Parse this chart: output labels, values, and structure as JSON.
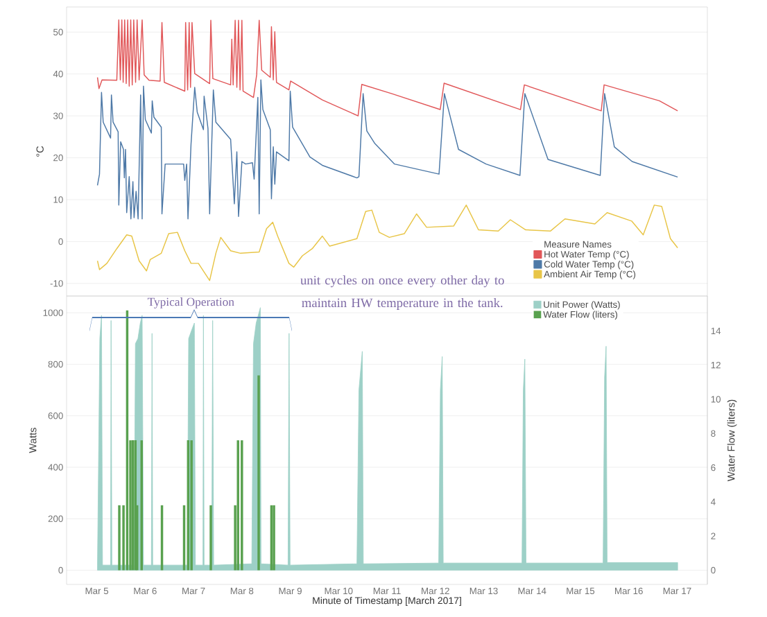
{
  "chart_data": [
    {
      "type": "line",
      "ylabel": "°C",
      "xlim": [
        "2017-03-04T09:00",
        "2017-03-17T15:00"
      ],
      "ylim": [
        -13,
        56
      ],
      "yticks": [
        -10,
        0,
        10,
        20,
        30,
        40,
        50
      ],
      "grid": "y",
      "tick_labels": "y",
      "legend": "bottom right",
      "legend_title": "Measure Names",
      "series": [
        {
          "name": "Hot Water Temp (°C)",
          "color": "#e15759",
          "x": [
            "2017-03-05T00:20",
            "2017-03-05T01:05",
            "2017-03-05T02:35",
            "2017-03-05T09:55",
            "2017-03-05T10:55",
            "2017-03-05T11:40",
            "2017-03-05T12:25",
            "2017-03-05T13:05",
            "2017-03-05T13:50",
            "2017-03-05T14:35",
            "2017-03-05T15:20",
            "2017-03-05T16:05",
            "2017-03-05T16:50",
            "2017-03-05T17:35",
            "2017-03-05T18:20",
            "2017-03-05T19:15",
            "2017-03-05T20:00",
            "2017-03-05T21:00",
            "2017-03-05T22:30",
            "2017-03-05T23:30",
            "2017-03-06T01:55",
            "2017-03-06T07:25",
            "2017-03-06T08:20",
            "2017-03-06T09:30",
            "2017-03-06T19:40",
            "2017-03-06T20:05",
            "2017-03-06T21:05",
            "2017-03-06T21:50",
            "2017-03-06T22:30",
            "2017-03-06T23:15",
            "2017-03-07T00:35",
            "2017-03-07T08:00",
            "2017-03-07T08:35",
            "2017-03-07T09:35",
            "2017-03-07T18:25",
            "2017-03-07T19:00",
            "2017-03-07T19:40",
            "2017-03-07T20:40",
            "2017-03-07T21:30",
            "2017-03-07T22:20",
            "2017-03-07T23:05",
            "2017-03-08T00:00",
            "2017-03-08T00:35",
            "2017-03-08T05:45",
            "2017-03-08T07:20",
            "2017-03-08T08:35",
            "2017-03-08T09:50",
            "2017-03-08T14:05",
            "2017-03-08T14:40",
            "2017-03-08T15:35",
            "2017-03-08T16:20",
            "2017-03-08T17:10",
            "2017-03-08T23:20",
            "2017-03-09T00:10",
            "2017-03-09T15:55",
            "2017-03-10T09:40",
            "2017-03-10T11:30",
            "2017-03-11T02:25",
            "2017-03-12T02:25",
            "2017-03-12T04:20",
            "2017-03-13T18:15",
            "2017-03-13T20:10",
            "2017-03-15T10:20",
            "2017-03-15T11:45",
            "2017-03-16T15:10",
            "2017-03-17T00:15"
          ],
          "values": [
            39.2,
            36.5,
            38.6,
            38.5,
            52.9,
            38.6,
            52.9,
            38,
            52.9,
            37.7,
            52.9,
            37.1,
            52.9,
            37.4,
            52.9,
            38,
            52.9,
            38.6,
            52.9,
            39.8,
            38.5,
            38.3,
            52.3,
            38,
            35.9,
            52.3,
            36.2,
            52.3,
            36.8,
            52.3,
            40.1,
            37.7,
            52.8,
            38.9,
            37.4,
            48.3,
            37.4,
            52.8,
            36.8,
            52.8,
            36.2,
            52.8,
            35.9,
            34.4,
            39.8,
            52.8,
            40.9,
            39.2,
            51.3,
            38.6,
            50.1,
            38,
            36.2,
            38.3,
            33.8,
            30,
            37.5,
            35.3,
            31.5,
            37.8,
            31.5,
            37.4,
            31.2,
            37.4,
            33.6,
            31.2
          ]
        },
        {
          "name": "Cold Water Temp (°C)",
          "color": "#4e79a7",
          "x": [
            "2017-03-05T00:20",
            "2017-03-05T01:20",
            "2017-03-05T02:20",
            "2017-03-05T03:10",
            "2017-03-05T06:50",
            "2017-03-05T07:15",
            "2017-03-05T08:05",
            "2017-03-05T10:35",
            "2017-03-05T10:55",
            "2017-03-05T11:50",
            "2017-03-05T13:15",
            "2017-03-05T13:40",
            "2017-03-05T14:15",
            "2017-03-05T14:50",
            "2017-03-05T16:05",
            "2017-03-05T16:55",
            "2017-03-05T17:55",
            "2017-03-05T18:30",
            "2017-03-05T19:30",
            "2017-03-05T20:30",
            "2017-03-05T21:45",
            "2017-03-05T22:30",
            "2017-03-05T23:10",
            "2017-03-06T00:05",
            "2017-03-06T03:05",
            "2017-03-06T03:30",
            "2017-03-06T04:20",
            "2017-03-06T08:00",
            "2017-03-06T08:20",
            "2017-03-06T09:55",
            "2017-03-06T19:05",
            "2017-03-06T19:40",
            "2017-03-06T20:35",
            "2017-03-06T21:15",
            "2017-03-06T22:45",
            "2017-03-07T00:35",
            "2017-03-07T01:50",
            "2017-03-07T04:55",
            "2017-03-07T05:15",
            "2017-03-07T07:10",
            "2017-03-07T08:00",
            "2017-03-07T09:50",
            "2017-03-07T11:05",
            "2017-03-07T18:25",
            "2017-03-07T20:15",
            "2017-03-07T21:30",
            "2017-03-07T22:20",
            "2017-03-08T00:00",
            "2017-03-08T01:50",
            "2017-03-08T05:15",
            "2017-03-08T06:05",
            "2017-03-08T07:55",
            "2017-03-08T08:35",
            "2017-03-08T09:25",
            "2017-03-08T10:25",
            "2017-03-08T14:05",
            "2017-03-08T14:40",
            "2017-03-08T15:35",
            "2017-03-08T16:20",
            "2017-03-08T17:10",
            "2017-03-08T23:20",
            "2017-03-09T00:00",
            "2017-03-09T01:10",
            "2017-03-09T09:45",
            "2017-03-09T15:55",
            "2017-03-10T09:05",
            "2017-03-10T10:05",
            "2017-03-10T12:10",
            "2017-03-10T14:00",
            "2017-03-10T17:50",
            "2017-03-11T03:45",
            "2017-03-12T01:50",
            "2017-03-12T04:30",
            "2017-03-12T11:30",
            "2017-03-13T01:10",
            "2017-03-13T18:00",
            "2017-03-13T20:25",
            "2017-03-14T07:55",
            "2017-03-15T09:50",
            "2017-03-15T12:00",
            "2017-03-15T16:50",
            "2017-03-16T01:40",
            "2017-03-17T00:15"
          ],
          "values": [
            13.4,
            16.1,
            35.6,
            28.5,
            24.7,
            35,
            28.5,
            26.2,
            8.7,
            23.8,
            22,
            15.2,
            22,
            6.9,
            15.5,
            5.4,
            14.3,
            5.7,
            12,
            5.4,
            35,
            5.4,
            37.1,
            29.1,
            25.9,
            33.6,
            29.7,
            27.3,
            6.6,
            18.5,
            18.5,
            14.6,
            18.5,
            5.4,
            23.2,
            36.8,
            30.9,
            26.7,
            34.7,
            27,
            6.6,
            36.2,
            28.5,
            24.4,
            9,
            21.4,
            6,
            19.1,
            18.5,
            18.8,
            14.9,
            34.4,
            6.6,
            38.6,
            31.5,
            26.7,
            10.2,
            22.6,
            13.7,
            21.4,
            19.3,
            35.9,
            27.3,
            20.2,
            18.2,
            15.2,
            15.5,
            35.3,
            26.4,
            23.5,
            18.5,
            16.1,
            35.3,
            22,
            18.5,
            15.8,
            35.3,
            19.6,
            15.8,
            35.3,
            22.6,
            19.1,
            15.4
          ]
        },
        {
          "name": "Ambient Air Temp (°C)",
          "color": "#e8c547",
          "x": [
            "2017-03-05T00:20",
            "2017-03-05T01:20",
            "2017-03-05T05:00",
            "2017-03-05T09:55",
            "2017-03-05T14:50",
            "2017-03-05T17:20",
            "2017-03-05T21:00",
            "2017-03-06T00:40",
            "2017-03-06T02:30",
            "2017-03-06T08:00",
            "2017-03-06T11:40",
            "2017-03-06T16:00",
            "2017-03-06T19:40",
            "2017-03-06T22:45",
            "2017-03-07T02:25",
            "2017-03-07T08:00",
            "2017-03-07T11:05",
            "2017-03-07T13:30",
            "2017-03-07T18:25",
            "2017-03-07T23:20",
            "2017-03-08T08:35",
            "2017-03-08T12:15",
            "2017-03-08T15:20",
            "2017-03-08T17:45",
            "2017-03-08T23:20",
            "2017-03-09T01:45",
            "2017-03-09T06:00",
            "2017-03-09T10:55",
            "2017-03-09T15:55",
            "2017-03-09T19:35",
            "2017-03-10T09:05",
            "2017-03-10T13:25",
            "2017-03-10T16:30",
            "2017-03-10T20:10",
            "2017-03-11T01:10",
            "2017-03-11T08:40",
            "2017-03-11T14:40",
            "2017-03-11T19:40",
            "2017-03-12T09:05",
            "2017-03-12T15:20",
            "2017-03-12T21:25",
            "2017-03-13T07:15",
            "2017-03-13T13:15",
            "2017-03-13T20:50",
            "2017-03-14T09:05",
            "2017-03-14T16:20",
            "2017-03-15T07:10",
            "2017-03-15T13:15",
            "2017-03-16T01:25",
            "2017-03-16T07:10",
            "2017-03-16T12:40",
            "2017-03-16T16:20",
            "2017-03-16T20:40",
            "2017-03-17T00:15"
          ],
          "values": [
            -4.6,
            -6.7,
            -5.2,
            -1.7,
            1.6,
            1.3,
            -4.6,
            -7,
            -4.3,
            -2.8,
            1.9,
            2.2,
            -2.2,
            -5.2,
            -5.2,
            -9.3,
            -2.8,
            1,
            -2.2,
            -2.8,
            -2.5,
            3.1,
            4.6,
            1.3,
            -5.2,
            -6.1,
            -3.4,
            -1.7,
            1.3,
            -1.1,
            0.7,
            7.2,
            7.5,
            2.2,
            1,
            1.9,
            6.6,
            3.4,
            3.7,
            8.7,
            2.8,
            2.5,
            5.2,
            2.8,
            2.5,
            5.4,
            4.2,
            6.9,
            4.9,
            1.6,
            8.7,
            8.4,
            0.7,
            -1.5
          ]
        }
      ]
    },
    {
      "type": "area",
      "xlabel": "Minute of Timestamp [March 2017]",
      "ylabel": "Watts",
      "y2label": "Water Flow (liters)",
      "xlim": [
        "2017-03-04T09:00",
        "2017-03-17T15:00"
      ],
      "xticks": [
        {
          "value": "2017-03-05",
          "label": "Mar 5"
        },
        {
          "value": "2017-03-06",
          "label": "Mar 6"
        },
        {
          "value": "2017-03-07",
          "label": "Mar 7"
        },
        {
          "value": "2017-03-08",
          "label": "Mar 8"
        },
        {
          "value": "2017-03-09",
          "label": "Mar 9"
        },
        {
          "value": "2017-03-10",
          "label": "Mar 10"
        },
        {
          "value": "2017-03-11",
          "label": "Mar 11"
        },
        {
          "value": "2017-03-12",
          "label": "Mar 12"
        },
        {
          "value": "2017-03-13",
          "label": "Mar 13"
        },
        {
          "value": "2017-03-14",
          "label": "Mar 14"
        },
        {
          "value": "2017-03-15",
          "label": "Mar 15"
        },
        {
          "value": "2017-03-16",
          "label": "Mar 16"
        },
        {
          "value": "2017-03-17",
          "label": "Mar 17"
        }
      ],
      "ylim": [
        -55,
        1065
      ],
      "yticks": [
        0,
        200,
        400,
        600,
        800,
        1000
      ],
      "y2lim": [
        -0.83,
        16.04
      ],
      "y2ticks": [
        0,
        2,
        4,
        6,
        8,
        10,
        12,
        14
      ],
      "grid": "y",
      "legend": "top right",
      "annotations": [
        "Typical Operation",
        "unit cycles on once every other day to maintain HW temperature in the tank."
      ],
      "series": [
        {
          "name": "Unit Power (Watts)",
          "type": "area",
          "color": "#9dd0c7",
          "x": [
            "2017-03-05T00:20",
            "2017-03-05T01:30",
            "2017-03-05T02:20",
            "2017-03-05T02:50",
            "2017-03-05T06:50",
            "2017-03-05T07:05",
            "2017-03-05T07:30",
            "2017-03-05T18:30",
            "2017-03-05T19:10",
            "2017-03-05T20:25",
            "2017-03-05T21:35",
            "2017-03-05T22:30",
            "2017-03-05T23:10",
            "2017-03-06T03:05",
            "2017-03-06T03:25",
            "2017-03-06T03:45",
            "2017-03-06T20:55",
            "2017-03-06T21:35",
            "2017-03-06T23:25",
            "2017-03-07T00:25",
            "2017-03-07T00:55",
            "2017-03-07T04:40",
            "2017-03-07T04:55",
            "2017-03-07T05:15",
            "2017-03-07T09:00",
            "2017-03-07T09:30",
            "2017-03-07T10:00",
            "2017-03-08T04:55",
            "2017-03-08T05:45",
            "2017-03-08T07:05",
            "2017-03-08T09:10",
            "2017-03-08T09:30",
            "2017-03-08T22:55",
            "2017-03-08T23:25",
            "2017-03-08T23:55",
            "2017-03-10T09:05",
            "2017-03-10T10:05",
            "2017-03-10T11:45",
            "2017-03-10T12:15",
            "2017-03-12T01:40",
            "2017-03-12T02:30",
            "2017-03-12T03:25",
            "2017-03-12T03:55",
            "2017-03-13T19:00",
            "2017-03-13T19:40",
            "2017-03-13T20:25",
            "2017-03-13T21:00",
            "2017-03-15T11:15",
            "2017-03-15T12:00",
            "2017-03-15T12:45",
            "2017-03-15T13:15",
            "2017-03-17T00:15"
          ],
          "values": [
            20,
            900,
            990,
            20,
            20,
            970,
            20,
            20,
            880,
            900,
            960,
            990,
            20,
            20,
            920,
            20,
            20,
            900,
            940,
            960,
            20,
            20,
            990,
            20,
            20,
            970,
            20,
            25,
            880,
            960,
            1020,
            25,
            20,
            920,
            20,
            25,
            700,
            850,
            25,
            28,
            700,
            830,
            28,
            28,
            700,
            820,
            28,
            28,
            750,
            870,
            30,
            30
          ]
        },
        {
          "name": "Water Flow (liters)",
          "type": "bar",
          "axis": "y2",
          "color": "#59a14f",
          "x": [
            "2017-03-05T11:10",
            "2017-03-05T13:15",
            "2017-03-05T15:05",
            "2017-03-05T16:40",
            "2017-03-05T17:55",
            "2017-03-05T19:10",
            "2017-03-05T20:00",
            "2017-03-05T22:15",
            "2017-03-06T08:20",
            "2017-03-06T19:20",
            "2017-03-06T21:20",
            "2017-03-06T23:00",
            "2017-03-07T08:35",
            "2017-03-07T20:40",
            "2017-03-07T22:05",
            "2017-03-08T00:00",
            "2017-03-08T08:20",
            "2017-03-08T14:40",
            "2017-03-08T15:55"
          ],
          "values": [
            3.8,
            3.8,
            15.2,
            7.6,
            7.6,
            7.6,
            3.8,
            7.6,
            3.8,
            3.8,
            7.6,
            7.6,
            3.8,
            3.8,
            7.6,
            7.6,
            11.4,
            3.8,
            3.8
          ]
        }
      ]
    }
  ]
}
